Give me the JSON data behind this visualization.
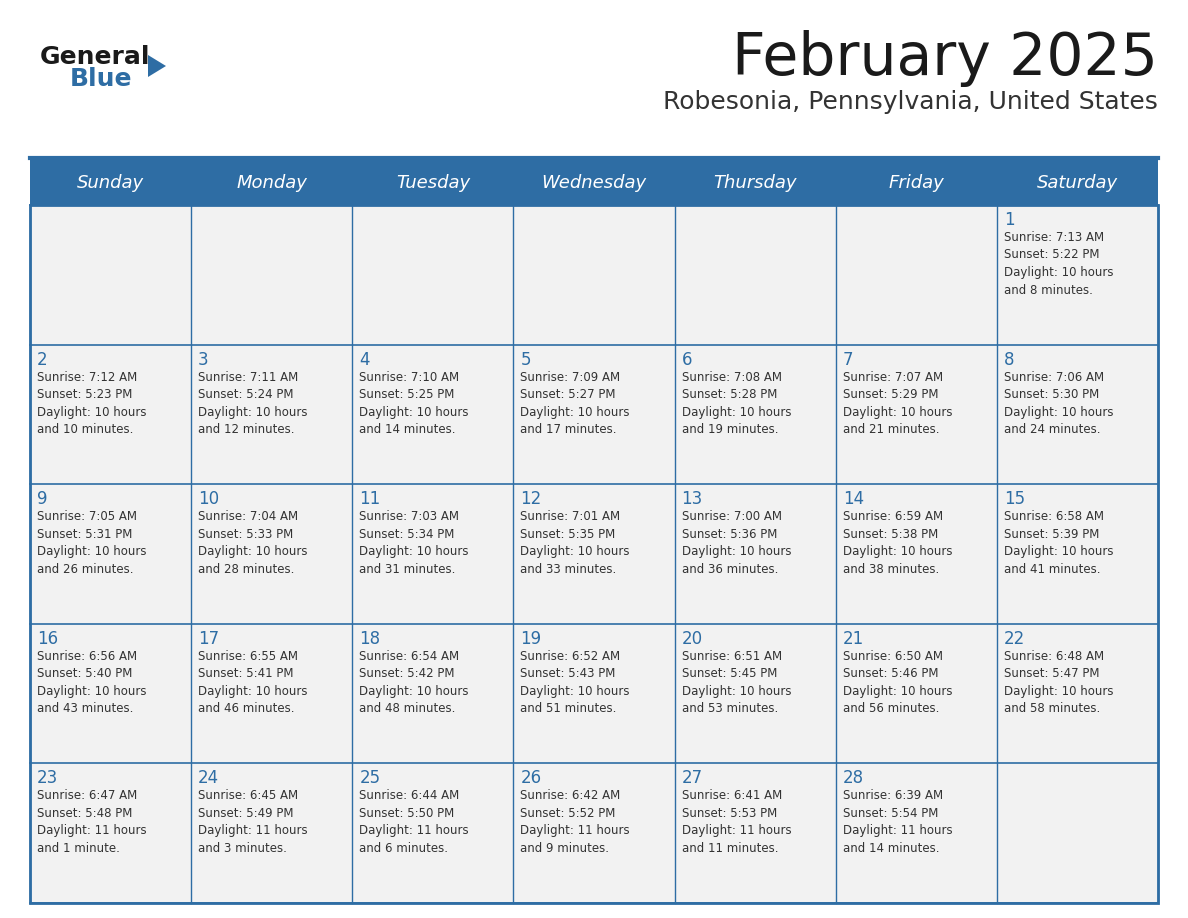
{
  "title": "February 2025",
  "subtitle": "Robesonia, Pennsylvania, United States",
  "header_bg": "#2E6DA4",
  "header_text_color": "#FFFFFF",
  "cell_bg": "#F2F2F2",
  "border_color": "#2E6DA4",
  "text_color": "#333333",
  "day_number_color": "#2E6DA4",
  "day_headers": [
    "Sunday",
    "Monday",
    "Tuesday",
    "Wednesday",
    "Thursday",
    "Friday",
    "Saturday"
  ],
  "weeks": [
    [
      {
        "day": "",
        "info": ""
      },
      {
        "day": "",
        "info": ""
      },
      {
        "day": "",
        "info": ""
      },
      {
        "day": "",
        "info": ""
      },
      {
        "day": "",
        "info": ""
      },
      {
        "day": "",
        "info": ""
      },
      {
        "day": "1",
        "info": "Sunrise: 7:13 AM\nSunset: 5:22 PM\nDaylight: 10 hours\nand 8 minutes."
      }
    ],
    [
      {
        "day": "2",
        "info": "Sunrise: 7:12 AM\nSunset: 5:23 PM\nDaylight: 10 hours\nand 10 minutes."
      },
      {
        "day": "3",
        "info": "Sunrise: 7:11 AM\nSunset: 5:24 PM\nDaylight: 10 hours\nand 12 minutes."
      },
      {
        "day": "4",
        "info": "Sunrise: 7:10 AM\nSunset: 5:25 PM\nDaylight: 10 hours\nand 14 minutes."
      },
      {
        "day": "5",
        "info": "Sunrise: 7:09 AM\nSunset: 5:27 PM\nDaylight: 10 hours\nand 17 minutes."
      },
      {
        "day": "6",
        "info": "Sunrise: 7:08 AM\nSunset: 5:28 PM\nDaylight: 10 hours\nand 19 minutes."
      },
      {
        "day": "7",
        "info": "Sunrise: 7:07 AM\nSunset: 5:29 PM\nDaylight: 10 hours\nand 21 minutes."
      },
      {
        "day": "8",
        "info": "Sunrise: 7:06 AM\nSunset: 5:30 PM\nDaylight: 10 hours\nand 24 minutes."
      }
    ],
    [
      {
        "day": "9",
        "info": "Sunrise: 7:05 AM\nSunset: 5:31 PM\nDaylight: 10 hours\nand 26 minutes."
      },
      {
        "day": "10",
        "info": "Sunrise: 7:04 AM\nSunset: 5:33 PM\nDaylight: 10 hours\nand 28 minutes."
      },
      {
        "day": "11",
        "info": "Sunrise: 7:03 AM\nSunset: 5:34 PM\nDaylight: 10 hours\nand 31 minutes."
      },
      {
        "day": "12",
        "info": "Sunrise: 7:01 AM\nSunset: 5:35 PM\nDaylight: 10 hours\nand 33 minutes."
      },
      {
        "day": "13",
        "info": "Sunrise: 7:00 AM\nSunset: 5:36 PM\nDaylight: 10 hours\nand 36 minutes."
      },
      {
        "day": "14",
        "info": "Sunrise: 6:59 AM\nSunset: 5:38 PM\nDaylight: 10 hours\nand 38 minutes."
      },
      {
        "day": "15",
        "info": "Sunrise: 6:58 AM\nSunset: 5:39 PM\nDaylight: 10 hours\nand 41 minutes."
      }
    ],
    [
      {
        "day": "16",
        "info": "Sunrise: 6:56 AM\nSunset: 5:40 PM\nDaylight: 10 hours\nand 43 minutes."
      },
      {
        "day": "17",
        "info": "Sunrise: 6:55 AM\nSunset: 5:41 PM\nDaylight: 10 hours\nand 46 minutes."
      },
      {
        "day": "18",
        "info": "Sunrise: 6:54 AM\nSunset: 5:42 PM\nDaylight: 10 hours\nand 48 minutes."
      },
      {
        "day": "19",
        "info": "Sunrise: 6:52 AM\nSunset: 5:43 PM\nDaylight: 10 hours\nand 51 minutes."
      },
      {
        "day": "20",
        "info": "Sunrise: 6:51 AM\nSunset: 5:45 PM\nDaylight: 10 hours\nand 53 minutes."
      },
      {
        "day": "21",
        "info": "Sunrise: 6:50 AM\nSunset: 5:46 PM\nDaylight: 10 hours\nand 56 minutes."
      },
      {
        "day": "22",
        "info": "Sunrise: 6:48 AM\nSunset: 5:47 PM\nDaylight: 10 hours\nand 58 minutes."
      }
    ],
    [
      {
        "day": "23",
        "info": "Sunrise: 6:47 AM\nSunset: 5:48 PM\nDaylight: 11 hours\nand 1 minute."
      },
      {
        "day": "24",
        "info": "Sunrise: 6:45 AM\nSunset: 5:49 PM\nDaylight: 11 hours\nand 3 minutes."
      },
      {
        "day": "25",
        "info": "Sunrise: 6:44 AM\nSunset: 5:50 PM\nDaylight: 11 hours\nand 6 minutes."
      },
      {
        "day": "26",
        "info": "Sunrise: 6:42 AM\nSunset: 5:52 PM\nDaylight: 11 hours\nand 9 minutes."
      },
      {
        "day": "27",
        "info": "Sunrise: 6:41 AM\nSunset: 5:53 PM\nDaylight: 11 hours\nand 11 minutes."
      },
      {
        "day": "28",
        "info": "Sunrise: 6:39 AM\nSunset: 5:54 PM\nDaylight: 11 hours\nand 14 minutes."
      },
      {
        "day": "",
        "info": ""
      }
    ]
  ],
  "logo_general_color": "#1a1a1a",
  "logo_blue_color": "#2E6DA4",
  "logo_triangle_color": "#2E6DA4",
  "fig_width": 11.88,
  "fig_height": 9.18,
  "dpi": 100
}
